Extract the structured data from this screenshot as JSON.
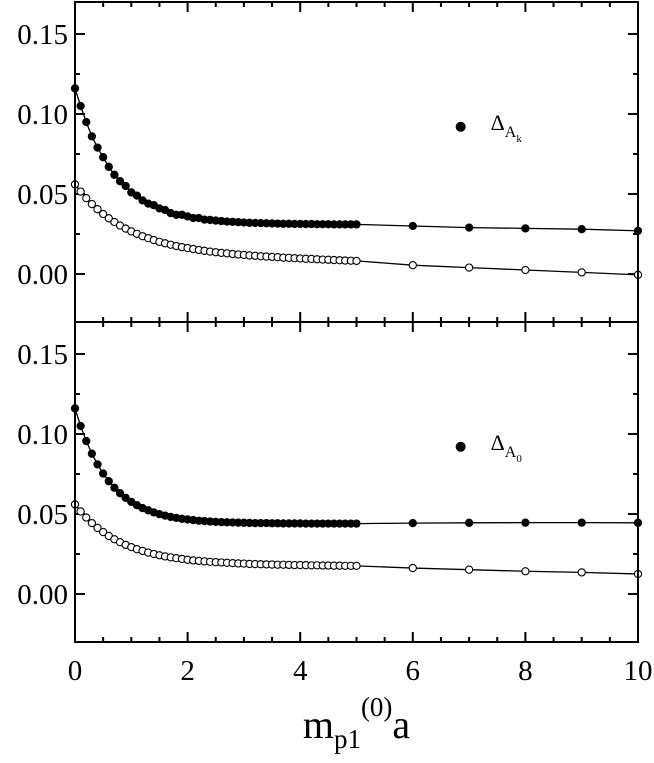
{
  "chart_data": [
    {
      "type": "line",
      "x": [
        0,
        0.1,
        0.2,
        0.3,
        0.4,
        0.5,
        0.6,
        0.7,
        0.8,
        0.9,
        1.0,
        1.1,
        1.2,
        1.3,
        1.4,
        1.5,
        1.6,
        1.7,
        1.8,
        1.9,
        2.0,
        2.1,
        2.2,
        2.3,
        2.4,
        2.5,
        2.6,
        2.7,
        2.8,
        2.9,
        3.0,
        3.1,
        3.2,
        3.3,
        3.4,
        3.5,
        3.6,
        3.7,
        3.8,
        3.9,
        4.0,
        4.1,
        4.2,
        4.3,
        4.4,
        4.5,
        4.6,
        4.7,
        4.8,
        4.9,
        5.0,
        6,
        7,
        8,
        9,
        10
      ],
      "series": [
        {
          "name": "ΔAk",
          "color": "#000000",
          "marker_fill": "#000000",
          "values": [
            0.116,
            0.105,
            0.095,
            0.086,
            0.079,
            0.073,
            0.067,
            0.062,
            0.058,
            0.055,
            0.051,
            0.049,
            0.046,
            0.044,
            0.043,
            0.041,
            0.04,
            0.038,
            0.037,
            0.037,
            0.036,
            0.035,
            0.035,
            0.034,
            0.0338,
            0.0334,
            0.0331,
            0.0328,
            0.0326,
            0.0324,
            0.0322,
            0.032,
            0.0319,
            0.0318,
            0.0317,
            0.0316,
            0.0315,
            0.0314,
            0.0314,
            0.0313,
            0.0313,
            0.0312,
            0.0312,
            0.0311,
            0.0311,
            0.0311,
            0.031,
            0.031,
            0.031,
            0.031,
            0.031,
            0.03,
            0.029,
            0.0285,
            0.028,
            0.027
          ]
        },
        {
          "color": "#000000",
          "marker_fill": "#ffffff",
          "values": [
            0.056,
            0.0515,
            0.0474,
            0.0437,
            0.0405,
            0.0375,
            0.0348,
            0.0325,
            0.0303,
            0.0284,
            0.0266,
            0.0251,
            0.0236,
            0.0224,
            0.0212,
            0.0201,
            0.0192,
            0.0183,
            0.0175,
            0.0168,
            0.0162,
            0.0156,
            0.015,
            0.0145,
            0.014,
            0.0136,
            0.0132,
            0.0129,
            0.0125,
            0.0122,
            0.0119,
            0.0116,
            0.0114,
            0.0111,
            0.0109,
            0.0107,
            0.0105,
            0.0102,
            0.0101,
            0.0099,
            0.0097,
            0.0095,
            0.0094,
            0.0092,
            0.009,
            0.0089,
            0.0087,
            0.0086,
            0.0084,
            0.0083,
            0.0082,
            0.0055,
            0.004,
            0.0025,
            0.001,
            -0.0005
          ]
        }
      ],
      "xlim": [
        0,
        10
      ],
      "xticks": [
        0,
        2,
        4,
        6,
        8,
        10
      ],
      "ylim": [
        -0.03,
        0.17
      ],
      "yticks": [
        {
          "value": 0,
          "label": "0.00"
        },
        {
          "value": 0.05,
          "label": "0.05"
        },
        {
          "value": 0.1,
          "label": "0.10"
        },
        {
          "value": 0.15,
          "label": "0.15"
        }
      ],
      "legend": "upper right"
    },
    {
      "type": "line",
      "x": [
        0,
        0.1,
        0.2,
        0.3,
        0.4,
        0.5,
        0.6,
        0.7,
        0.8,
        0.9,
        1.0,
        1.1,
        1.2,
        1.3,
        1.4,
        1.5,
        1.6,
        1.7,
        1.8,
        1.9,
        2.0,
        2.1,
        2.2,
        2.3,
        2.4,
        2.5,
        2.6,
        2.7,
        2.8,
        2.9,
        3.0,
        3.1,
        3.2,
        3.3,
        3.4,
        3.5,
        3.6,
        3.7,
        3.8,
        3.9,
        4.0,
        4.1,
        4.2,
        4.3,
        4.4,
        4.5,
        4.6,
        4.7,
        4.8,
        4.9,
        5.0,
        6,
        7,
        8,
        9,
        10
      ],
      "series": [
        {
          "name": "ΔA0",
          "color": "#000000",
          "marker_fill": "#000000",
          "values": [
            0.116,
            0.105,
            0.0956,
            0.0877,
            0.081,
            0.0753,
            0.0705,
            0.0664,
            0.063,
            0.0601,
            0.0576,
            0.0555,
            0.0537,
            0.0523,
            0.051,
            0.0499,
            0.049,
            0.0482,
            0.0476,
            0.047,
            0.0466,
            0.0462,
            0.0458,
            0.0456,
            0.0453,
            0.0451,
            0.0449,
            0.0448,
            0.0447,
            0.0446,
            0.0445,
            0.0444,
            0.0443,
            0.0443,
            0.0443,
            0.0442,
            0.0442,
            0.0441,
            0.0441,
            0.0441,
            0.0441,
            0.044,
            0.044,
            0.044,
            0.044,
            0.044,
            0.044,
            0.044,
            0.044,
            0.044,
            0.044,
            0.0443,
            0.0445,
            0.0446,
            0.0446,
            0.0445
          ]
        },
        {
          "color": "#000000",
          "marker_fill": "#ffffff",
          "values": [
            0.056,
            0.0516,
            0.0478,
            0.0443,
            0.0413,
            0.0387,
            0.0363,
            0.0342,
            0.0324,
            0.0307,
            0.0293,
            0.028,
            0.0269,
            0.0259,
            0.025,
            0.0242,
            0.0235,
            0.0229,
            0.0224,
            0.0219,
            0.0214,
            0.021,
            0.0207,
            0.0204,
            0.0201,
            0.0199,
            0.0197,
            0.0195,
            0.0193,
            0.0191,
            0.019,
            0.0188,
            0.0187,
            0.0186,
            0.0185,
            0.0184,
            0.0183,
            0.0183,
            0.0182,
            0.0181,
            0.0181,
            0.018,
            0.0179,
            0.0179,
            0.0178,
            0.0178,
            0.0177,
            0.0177,
            0.0176,
            0.0176,
            0.0176,
            0.0162,
            0.0152,
            0.0142,
            0.0135,
            0.0125
          ]
        }
      ],
      "xlim": [
        0,
        10
      ],
      "xticks": [
        0,
        2,
        4,
        6,
        8,
        10
      ],
      "ylim": [
        -0.03,
        0.17
      ],
      "yticks": [
        {
          "value": 0,
          "label": "0.00"
        },
        {
          "value": 0.05,
          "label": "0.05"
        },
        {
          "value": 0.1,
          "label": "0.10"
        },
        {
          "value": 0.15,
          "label": "0.15"
        }
      ],
      "legend": "upper right",
      "x_label": "mp1(0)a"
    }
  ]
}
